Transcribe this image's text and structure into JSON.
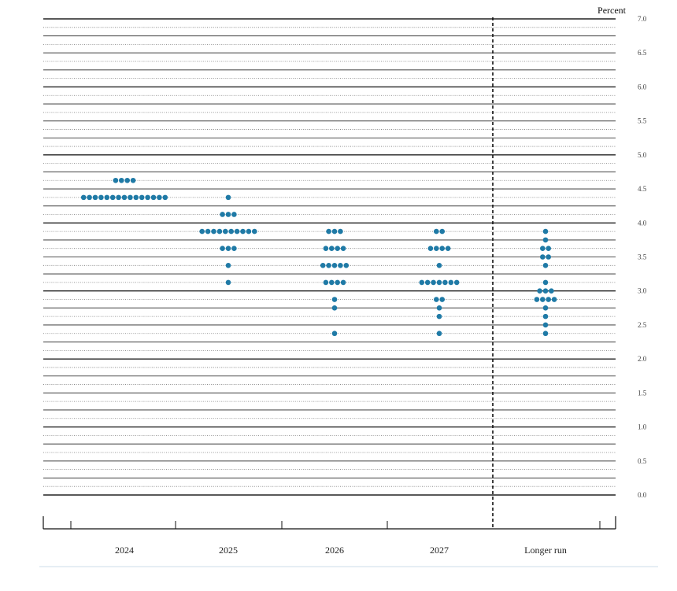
{
  "chart_data": {
    "type": "scatter",
    "title": "",
    "xlabel": "",
    "ylabel": "Percent",
    "ylim": [
      0,
      7
    ],
    "y_ticks": [
      "7.0",
      "6.5",
      "6.0",
      "5.5",
      "5.0",
      "4.5",
      "4.0",
      "3.5",
      "3.0",
      "2.5",
      "2.0",
      "1.5",
      "1.0",
      "0.5",
      "0.0"
    ],
    "categories": [
      "2024",
      "2025",
      "2026",
      "2027",
      "Longer run"
    ],
    "dot_color": "#1f7aa6",
    "grid": "dotted lines every 0.125, solid every 0.25 and 1.0",
    "divider": "dashed vertical line before Longer run",
    "distribution": [
      {
        "category": "2024",
        "points": [
          {
            "y": 4.625,
            "count": 4
          },
          {
            "y": 4.375,
            "count": 15
          }
        ]
      },
      {
        "category": "2025",
        "points": [
          {
            "y": 4.375,
            "count": 1
          },
          {
            "y": 4.125,
            "count": 3
          },
          {
            "y": 3.875,
            "count": 10
          },
          {
            "y": 3.625,
            "count": 3
          },
          {
            "y": 3.375,
            "count": 1
          },
          {
            "y": 3.125,
            "count": 1
          }
        ]
      },
      {
        "category": "2026",
        "points": [
          {
            "y": 3.875,
            "count": 3
          },
          {
            "y": 3.625,
            "count": 4
          },
          {
            "y": 3.375,
            "count": 5
          },
          {
            "y": 3.125,
            "count": 4
          },
          {
            "y": 2.875,
            "count": 1
          },
          {
            "y": 2.75,
            "count": 1
          },
          {
            "y": 2.375,
            "count": 1
          }
        ]
      },
      {
        "category": "2027",
        "points": [
          {
            "y": 3.875,
            "count": 2
          },
          {
            "y": 3.625,
            "count": 4
          },
          {
            "y": 3.375,
            "count": 1
          },
          {
            "y": 3.125,
            "count": 7
          },
          {
            "y": 2.875,
            "count": 2
          },
          {
            "y": 2.75,
            "count": 1
          },
          {
            "y": 2.625,
            "count": 1
          },
          {
            "y": 2.375,
            "count": 1
          }
        ]
      },
      {
        "category": "Longer run",
        "points": [
          {
            "y": 3.875,
            "count": 1
          },
          {
            "y": 3.75,
            "count": 1
          },
          {
            "y": 3.625,
            "count": 2
          },
          {
            "y": 3.5,
            "count": 2
          },
          {
            "y": 3.375,
            "count": 1
          },
          {
            "y": 3.125,
            "count": 1
          },
          {
            "y": 3.0,
            "count": 3
          },
          {
            "y": 2.875,
            "count": 4
          },
          {
            "y": 2.75,
            "count": 1
          },
          {
            "y": 2.625,
            "count": 1
          },
          {
            "y": 2.5,
            "count": 1
          },
          {
            "y": 2.375,
            "count": 1
          }
        ]
      }
    ]
  }
}
